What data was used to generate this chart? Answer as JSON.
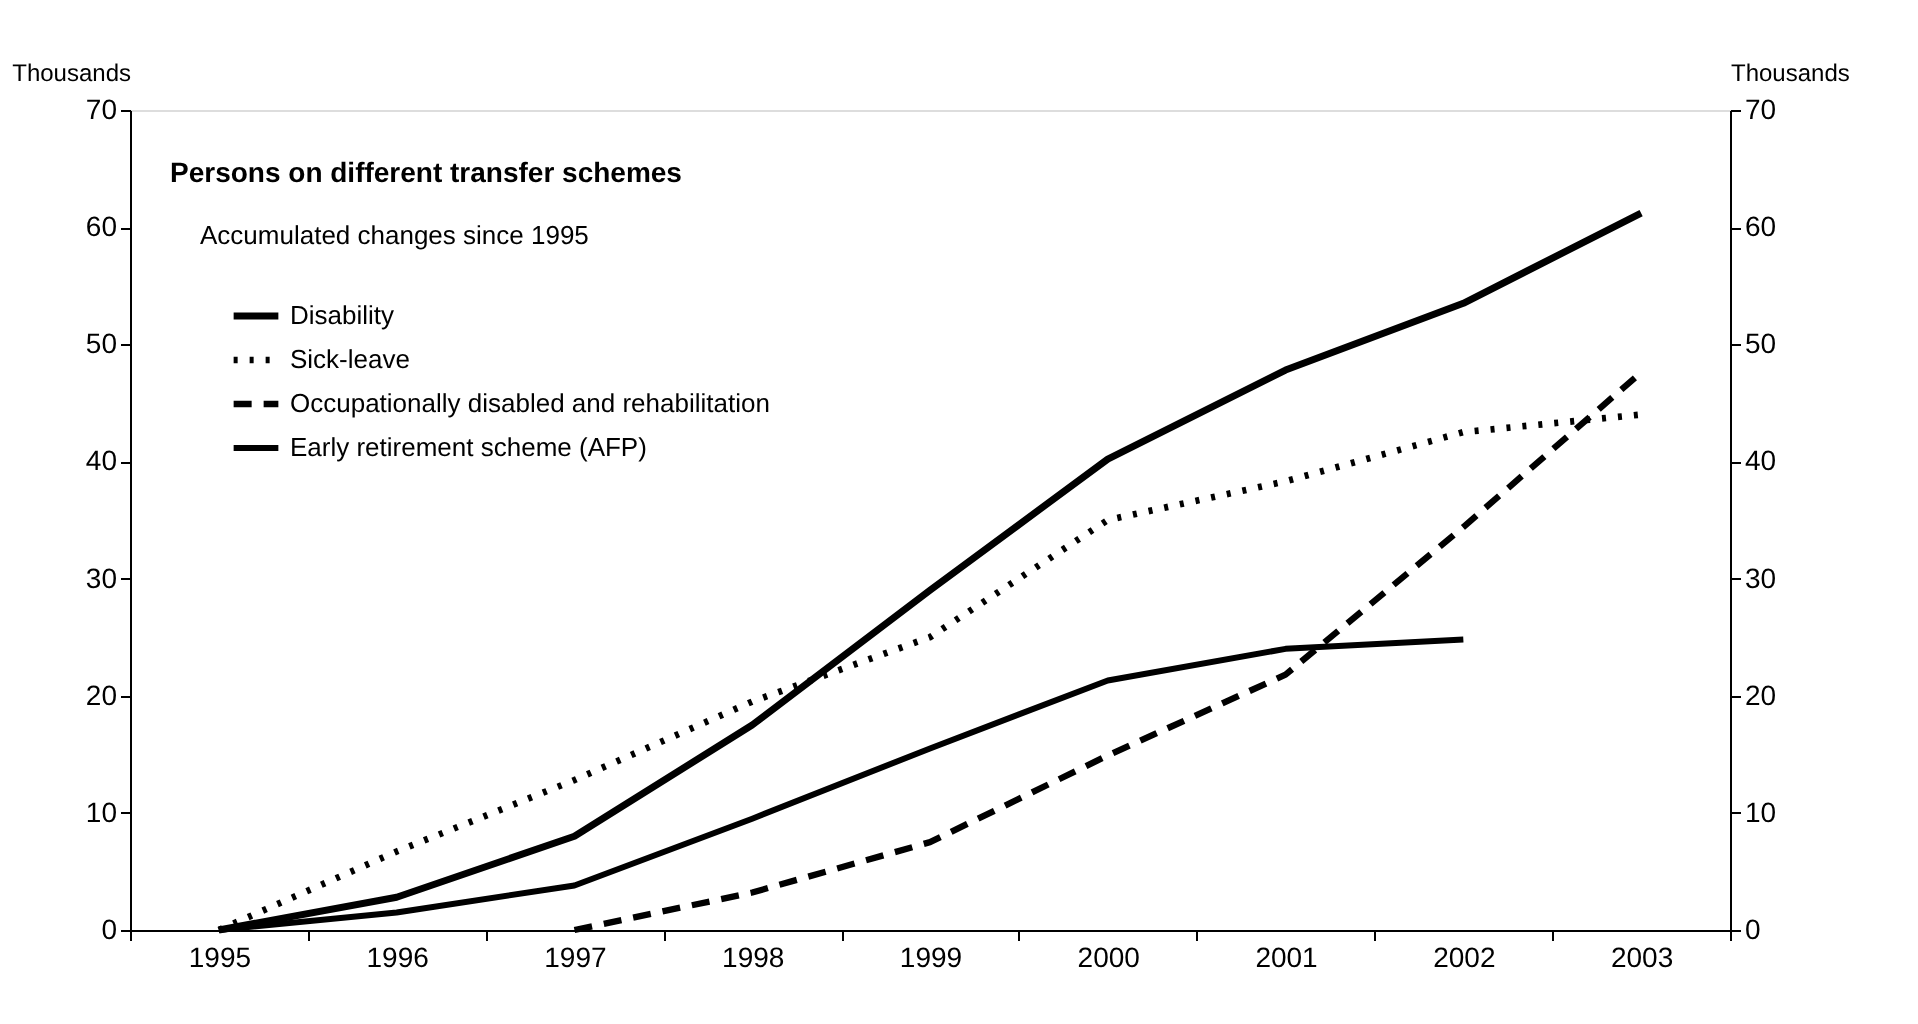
{
  "chart_data": {
    "type": "line",
    "title": "Persons on different transfer schemes",
    "subtitle": "Accumulated changes since 1995",
    "ylabel": "Thousands",
    "y2label": "Thousands",
    "categories": [
      "1995",
      "1996",
      "1997",
      "1998",
      "1999",
      "2000",
      "2001",
      "2002",
      "2003"
    ],
    "series": [
      {
        "name": "Disability",
        "color": "#000000",
        "line_style": "solid",
        "values": [
          0,
          2.8,
          8,
          17.5,
          29,
          40.2,
          47.8,
          53.5,
          61.2
        ]
      },
      {
        "name": "Sick-leave",
        "color": "#000000",
        "line_style": "dotted",
        "values": [
          0,
          6.7,
          12.8,
          19.5,
          25,
          35,
          38.3,
          42.5,
          44
        ]
      },
      {
        "name": "Occupationally disabled and rehabilitation",
        "color": "#000000",
        "line_style": "dashed",
        "values": [
          null,
          null,
          0,
          3.2,
          7.5,
          14.9,
          21.8,
          34.4,
          47.6
        ]
      },
      {
        "name": "Early retirement scheme (AFP)",
        "color": "#000000",
        "line_style": "solid",
        "values": [
          0,
          1.5,
          3.8,
          9.5,
          15.5,
          21.3,
          24,
          24.8,
          null
        ]
      }
    ],
    "ylim": [
      0,
      70
    ],
    "yticks": [
      0,
      10,
      20,
      30,
      40,
      50,
      60,
      70
    ],
    "y2lim": [
      0,
      70
    ],
    "y2ticks": [
      0,
      10,
      20,
      30,
      40,
      50,
      60,
      70
    ],
    "grid": false,
    "legend": "top left"
  }
}
